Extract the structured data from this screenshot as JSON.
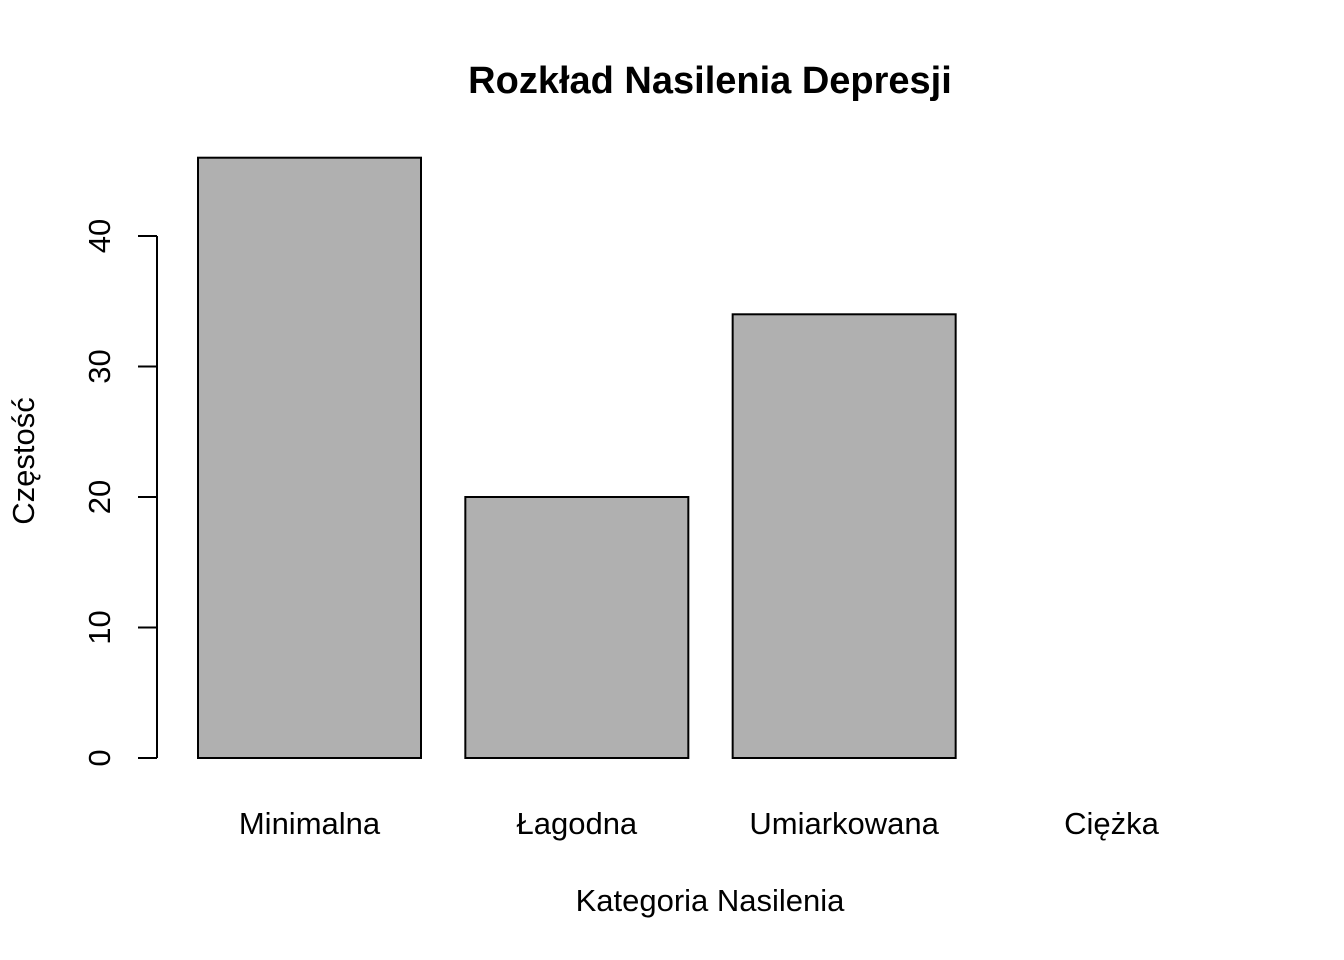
{
  "chart_data": {
    "type": "bar",
    "title": "Rozkład Nasilenia Depresji",
    "xlabel": "Kategoria Nasilenia",
    "ylabel": "Częstość",
    "categories": [
      "Minimalna",
      "Łagodna",
      "Umiarkowana",
      "Ciężka"
    ],
    "values": [
      46,
      20,
      34,
      0
    ],
    "yticks": [
      0,
      10,
      20,
      30,
      40
    ],
    "ylim": [
      0,
      46
    ],
    "grid": false,
    "legend": "none",
    "colors": {
      "bar_fill": "#b0b0b0",
      "bar_stroke": "#000000"
    }
  }
}
